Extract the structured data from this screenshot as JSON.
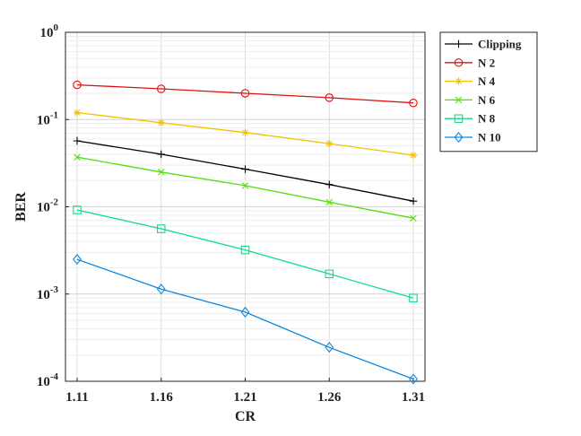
{
  "chart_data": {
    "type": "line",
    "title": "",
    "xlabel": "CR",
    "ylabel": "BER",
    "yscale": "log",
    "x": [
      1.11,
      1.16,
      1.21,
      1.26,
      1.31
    ],
    "x_tick_labels": [
      "1.11",
      "1.16",
      "1.21",
      "1.26",
      "1.31"
    ],
    "xlim": [
      1.11,
      1.31
    ],
    "ylim": [
      0.0001,
      1
    ],
    "y_ticks": [
      {
        "base": "10",
        "exp": "0"
      },
      {
        "base": "10",
        "exp": "-1"
      },
      {
        "base": "10",
        "exp": "-2"
      },
      {
        "base": "10",
        "exp": "-3"
      },
      {
        "base": "10",
        "exp": "-4"
      }
    ],
    "grid": true,
    "legend_position": "outside-top-right",
    "series": [
      {
        "name": "Clipping",
        "color": "#000000",
        "marker": "plus",
        "values": [
          0.057,
          0.04,
          0.027,
          0.018,
          0.0116
        ]
      },
      {
        "name": "N 2",
        "color": "#dd1111",
        "marker": "circle",
        "values": [
          0.25,
          0.225,
          0.2,
          0.178,
          0.155
        ]
      },
      {
        "name": "N 4",
        "color": "#f2c200",
        "marker": "asterisk",
        "values": [
          0.12,
          0.092,
          0.071,
          0.053,
          0.039
        ]
      },
      {
        "name": "N 6",
        "color": "#55dd11",
        "marker": "x",
        "values": [
          0.037,
          0.025,
          0.0175,
          0.0113,
          0.0074
        ]
      },
      {
        "name": "N 8",
        "color": "#11dd88",
        "marker": "square",
        "values": [
          0.0092,
          0.0056,
          0.0032,
          0.0017,
          0.0009
        ]
      },
      {
        "name": "N 10",
        "color": "#1188dd",
        "marker": "diamond",
        "values": [
          0.0025,
          0.00114,
          0.00062,
          0.000245,
          0.000106
        ]
      }
    ]
  }
}
